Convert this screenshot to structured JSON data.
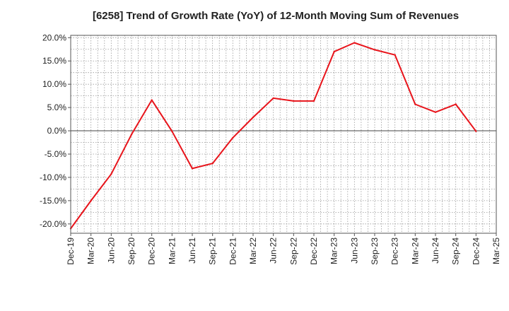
{
  "chart_data": {
    "type": "line",
    "title": "[6258]  Trend of Growth Rate (YoY) of 12-Month Moving Sum of Revenues",
    "xlabel": "",
    "ylabel": "",
    "ylim": [
      -22,
      20.5
    ],
    "y_ticks": [
      20,
      15,
      10,
      5,
      0,
      -5,
      -10,
      -15,
      -20
    ],
    "y_tick_labels": [
      "20.0%",
      "15.0%",
      "10.0%",
      "5.0%",
      "0.0%",
      "-5.0%",
      "-10.0%",
      "-15.0%",
      "-20.0%"
    ],
    "x_ticks": [
      "Dec-19",
      "Mar-20",
      "Jun-20",
      "Sep-20",
      "Dec-20",
      "Mar-21",
      "Jun-21",
      "Sep-21",
      "Dec-21",
      "Mar-22",
      "Jun-22",
      "Sep-22",
      "Dec-22",
      "Mar-23",
      "Jun-23",
      "Sep-23",
      "Dec-23",
      "Mar-24",
      "Jun-24",
      "Sep-24",
      "Dec-24",
      "Mar-25"
    ],
    "grid": true,
    "line_color": "#e8141b",
    "series": [
      {
        "x": [
          "Dec-19",
          "Mar-20",
          "Jun-20",
          "Sep-20",
          "Dec-20",
          "Mar-21",
          "Jun-21",
          "Sep-21",
          "Dec-21",
          "Mar-22",
          "Jun-22",
          "Sep-22",
          "Dec-22",
          "Mar-23",
          "Jun-23",
          "Sep-23",
          "Dec-23",
          "Mar-24",
          "Jun-24",
          "Sep-24",
          "Dec-24"
        ],
        "values": [
          -21.0,
          -15.0,
          -9.3,
          -0.8,
          6.6,
          -0.1,
          -8.1,
          -7.0,
          -1.5,
          2.9,
          7.0,
          6.4,
          6.4,
          17.0,
          18.9,
          17.4,
          16.3,
          5.7,
          4.0,
          5.7,
          -0.1
        ]
      }
    ]
  }
}
